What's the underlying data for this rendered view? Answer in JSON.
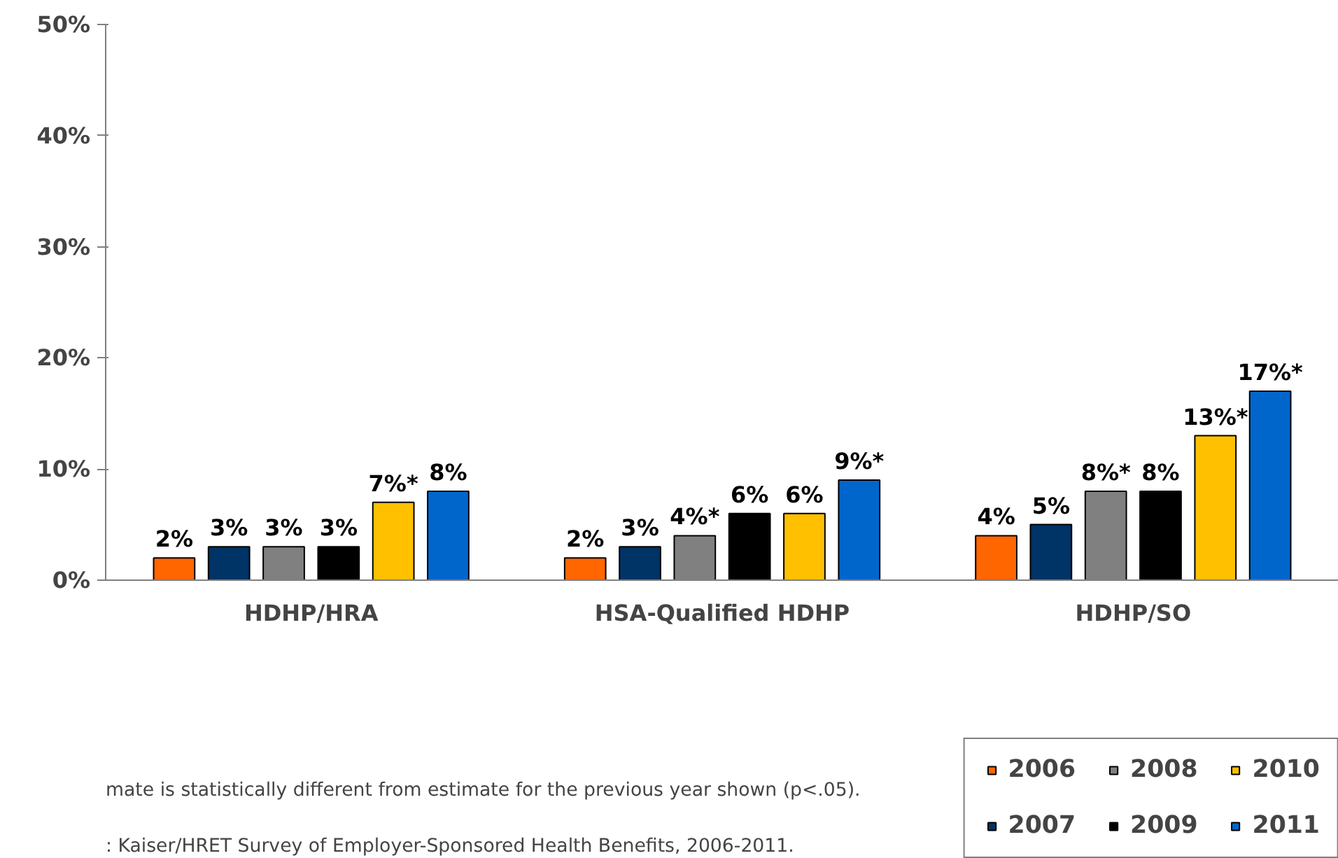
{
  "chart_data": {
    "type": "bar",
    "categories": [
      "HDHP/HRA",
      "HSA-Qualified HDHP",
      "HDHP/SO"
    ],
    "series": [
      {
        "name": "2006",
        "color": "#ff6600",
        "values": [
          2,
          2,
          4
        ],
        "value_labels": [
          "2%",
          "2%",
          "4%"
        ]
      },
      {
        "name": "2007",
        "color": "#003366",
        "values": [
          3,
          3,
          5
        ],
        "value_labels": [
          "3%",
          "3%",
          "5%"
        ]
      },
      {
        "name": "2008",
        "color": "#808080",
        "values": [
          3,
          4,
          8
        ],
        "value_labels": [
          "3%",
          "4%*",
          "8%*"
        ]
      },
      {
        "name": "2009",
        "color": "#000000",
        "values": [
          3,
          6,
          8
        ],
        "value_labels": [
          "3%",
          "6%",
          "8%"
        ]
      },
      {
        "name": "2010",
        "color": "#ffc000",
        "values": [
          7,
          6,
          13
        ],
        "value_labels": [
          "7%*",
          "6%",
          "13%*"
        ]
      },
      {
        "name": "2011",
        "color": "#0066cc",
        "values": [
          8,
          9,
          17
        ],
        "value_labels": [
          "8%",
          "9%*",
          "17%*"
        ]
      }
    ],
    "ylim": [
      0,
      50
    ],
    "yticks": [
      {
        "value": 0,
        "label": "0%"
      },
      {
        "value": 10,
        "label": "10%"
      },
      {
        "value": 20,
        "label": "20%"
      },
      {
        "value": 30,
        "label": "30%"
      },
      {
        "value": 40,
        "label": "40%"
      },
      {
        "value": 50,
        "label": "50%"
      }
    ],
    "grid": false,
    "legend": "bottom right",
    "annotations": [
      "mate is statistically different from estimate for the previous year shown (p<.05).",
      ":  Kaiser/HRET Survey of Employer-Sponsored Health Benefits, 2006-2011."
    ]
  }
}
